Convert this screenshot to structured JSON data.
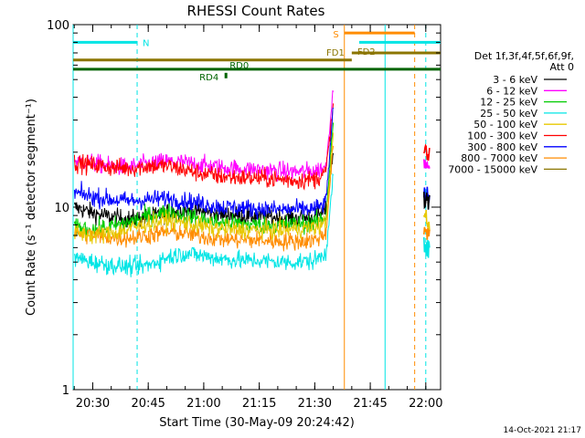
{
  "chart_data": {
    "type": "line",
    "title": "RHESSI Count Rates",
    "xlabel": "Start Time (30-May-09 20:24:42)",
    "ylabel": "Count Rate (s⁻¹ detector segment⁻¹)",
    "yscale": "log",
    "xlim": [
      "20:24:42",
      "22:04:00"
    ],
    "ylim": [
      1,
      100
    ],
    "x_ticks": [
      "20:30",
      "20:45",
      "21:00",
      "21:15",
      "21:30",
      "21:45",
      "22:00"
    ],
    "y_ticks": [
      "1",
      "10",
      "100"
    ],
    "grid": false,
    "legend_position": "right",
    "legend_title": "Det 1f,3f,4f,5f,6f,9f,",
    "legend_subtitle": "Att 0",
    "timestamp": "14-Oct-2021 21:17",
    "series": [
      {
        "name": "3 - 6 keV",
        "color": "#000000",
        "x": [
          "20:25",
          "20:30",
          "20:35",
          "20:40",
          "20:45",
          "20:50",
          "20:55",
          "21:00",
          "21:05",
          "21:10",
          "21:15",
          "21:20",
          "21:25",
          "21:30",
          "21:33",
          "21:35"
        ],
        "values": [
          10,
          9.3,
          8.8,
          8.6,
          8.8,
          9.3,
          9.6,
          9.4,
          9.1,
          9.0,
          8.9,
          8.8,
          8.7,
          8.8,
          9.5,
          20
        ]
      },
      {
        "name": "6 - 12 keV",
        "color": "#ff00ff",
        "x": [
          "20:25",
          "20:30",
          "20:35",
          "20:40",
          "20:45",
          "20:50",
          "20:55",
          "21:00",
          "21:05",
          "21:10",
          "21:15",
          "21:20",
          "21:25",
          "21:30",
          "21:33",
          "21:35"
        ],
        "values": [
          18,
          17.5,
          16.8,
          16.5,
          17.3,
          17.8,
          17.5,
          17,
          16.5,
          16.2,
          16,
          15.8,
          15.6,
          15.8,
          16.5,
          45
        ]
      },
      {
        "name": "12 - 25 keV",
        "color": "#00cc00",
        "x": [
          "20:25",
          "20:30",
          "20:35",
          "20:40",
          "20:45",
          "20:50",
          "20:55",
          "21:00",
          "21:05",
          "21:10",
          "21:15",
          "21:20",
          "21:25",
          "21:30",
          "21:33",
          "21:35"
        ],
        "values": [
          7.8,
          7.5,
          7.8,
          8.3,
          9.0,
          9.4,
          9.0,
          8.5,
          8.2,
          8.1,
          8.0,
          8.0,
          8.1,
          8.2,
          8.8,
          30
        ]
      },
      {
        "name": "25 - 50 keV",
        "color": "#00e5e5",
        "x": [
          "20:25",
          "20:30",
          "20:35",
          "20:40",
          "20:45",
          "20:50",
          "20:55",
          "21:00",
          "21:05",
          "21:10",
          "21:15",
          "21:20",
          "21:25",
          "21:30",
          "21:33",
          "21:35"
        ],
        "values": [
          5.3,
          5.0,
          4.8,
          4.7,
          4.8,
          5.3,
          5.6,
          5.4,
          5.2,
          5.1,
          5.1,
          5.0,
          5.0,
          5.1,
          5.6,
          15
        ]
      },
      {
        "name": "50 - 100 keV",
        "color": "#e8c800",
        "x": [
          "20:25",
          "20:30",
          "20:35",
          "20:40",
          "20:45",
          "20:50",
          "20:55",
          "21:00",
          "21:05",
          "21:10",
          "21:15",
          "21:20",
          "21:25",
          "21:30",
          "21:33",
          "21:35"
        ],
        "values": [
          7.3,
          7.0,
          7.2,
          7.6,
          8.2,
          8.5,
          8.2,
          7.8,
          7.6,
          7.5,
          7.5,
          7.5,
          7.6,
          7.7,
          8.2,
          25
        ]
      },
      {
        "name": "100 - 300 keV",
        "color": "#ff0000",
        "x": [
          "20:25",
          "20:30",
          "20:35",
          "20:40",
          "20:45",
          "20:50",
          "20:55",
          "21:00",
          "21:05",
          "21:10",
          "21:15",
          "21:20",
          "21:25",
          "21:30",
          "21:33",
          "21:35"
        ],
        "values": [
          17.5,
          17,
          16.5,
          16.3,
          16.8,
          16.8,
          16,
          15.2,
          14.7,
          14.5,
          14.4,
          14.2,
          14.0,
          14.2,
          15.5,
          36
        ]
      },
      {
        "name": "300 - 800 keV",
        "color": "#0000ff",
        "x": [
          "20:25",
          "20:30",
          "20:35",
          "20:40",
          "20:45",
          "20:50",
          "20:55",
          "21:00",
          "21:05",
          "21:10",
          "21:15",
          "21:20",
          "21:25",
          "21:30",
          "21:33",
          "21:35"
        ],
        "values": [
          12,
          11.4,
          11.0,
          10.8,
          11.0,
          11.2,
          10.8,
          10.4,
          10.0,
          9.9,
          9.8,
          9.7,
          9.7,
          9.8,
          10.5,
          35
        ]
      },
      {
        "name": "800 - 7000 keV",
        "color": "#ff8c00",
        "x": [
          "20:25",
          "20:30",
          "20:35",
          "20:40",
          "20:45",
          "20:50",
          "20:55",
          "21:00",
          "21:05",
          "21:10",
          "21:15",
          "21:20",
          "21:25",
          "21:30",
          "21:33",
          "21:35"
        ],
        "values": [
          7.2,
          7.0,
          6.8,
          6.8,
          7.0,
          7.3,
          7.2,
          6.9,
          6.7,
          6.6,
          6.6,
          6.5,
          6.5,
          6.6,
          7.2,
          22
        ]
      },
      {
        "name": "7000 - 15000 keV",
        "color": "#8b7500",
        "x": [],
        "values": []
      }
    ],
    "post_gap": {
      "x": [
        "22:00",
        "22:01"
      ],
      "series": [
        {
          "name": "100 - 300 keV",
          "values": [
            20,
            19
          ]
        },
        {
          "name": "6 - 12 keV",
          "values": [
            17,
            16
          ]
        },
        {
          "name": "300 - 800 keV",
          "values": [
            12,
            11
          ]
        },
        {
          "name": "3 - 6 keV",
          "values": [
            11,
            10.5
          ]
        },
        {
          "name": "50 - 100 keV",
          "values": [
            8.5,
            8
          ]
        },
        {
          "name": "800 - 7000 keV",
          "values": [
            7.8,
            7.5
          ]
        },
        {
          "name": "25 - 50 keV",
          "values": [
            6.0,
            5.8
          ]
        }
      ]
    },
    "flag_bars": [
      {
        "label": "N",
        "color": "#00e5e5",
        "y": 80,
        "from": "20:24:42",
        "to": "20:42"
      },
      {
        "label": "",
        "color": "#00e5e5",
        "y": 80,
        "from": "21:42",
        "to": "22:04"
      },
      {
        "label": "S",
        "color": "#ff8c00",
        "y": 90,
        "from": "21:38",
        "to": "21:57"
      },
      {
        "label": "FD1",
        "color": "#8b7500",
        "y": 64,
        "from": "20:24:42",
        "to": "21:40"
      },
      {
        "label": "FD2",
        "color": "#8b7500",
        "y": 70,
        "from": "21:40",
        "to": "22:04"
      },
      {
        "label": "RD0",
        "color": "#006400",
        "y": 57,
        "from": "20:24:42",
        "to": "22:04"
      },
      {
        "label": "RD4",
        "color": "#006400",
        "y": 52,
        "from": "21:06",
        "to": "21:06"
      }
    ],
    "vlines": [
      {
        "x": "20:24:42",
        "color": "#00e5e5",
        "style": "solid"
      },
      {
        "x": "20:42",
        "color": "#00e5e5",
        "style": "dashed"
      },
      {
        "x": "21:38",
        "color": "#ff8c00",
        "style": "solid"
      },
      {
        "x": "21:49",
        "color": "#00e5e5",
        "style": "solid"
      },
      {
        "x": "21:57",
        "color": "#ff8c00",
        "style": "dashed"
      },
      {
        "x": "22:00",
        "color": "#00e5e5",
        "style": "dashed"
      }
    ]
  }
}
